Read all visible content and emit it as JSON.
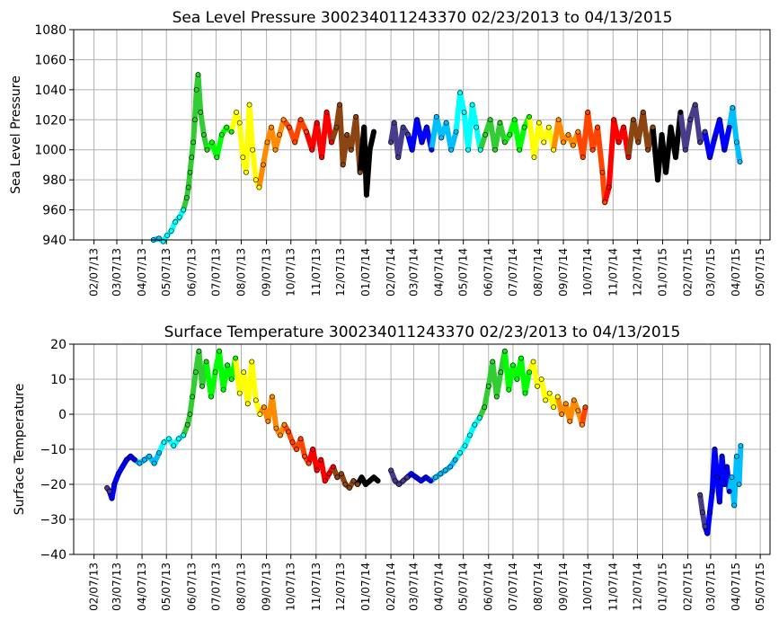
{
  "chart_data": [
    {
      "type": "scatter",
      "title": "Sea Level Pressure 300234011243370  02/23/2013 to 04/13/2015",
      "xlabel": "",
      "ylabel": "Sea Level Pressure",
      "ylim": [
        940,
        1080
      ],
      "yticks": [
        "940",
        "960",
        "980",
        "1000",
        "1020",
        "1040",
        "1060",
        "1080"
      ],
      "xlim": [
        "2013-01-13",
        "2015-05-19"
      ],
      "xticks": [
        "02/07/13",
        "03/07/13",
        "04/07/13",
        "05/07/13",
        "06/07/13",
        "07/07/13",
        "08/07/13",
        "09/07/13",
        "10/07/13",
        "11/07/13",
        "12/07/13",
        "01/07/14",
        "02/07/14",
        "03/07/14",
        "04/07/14",
        "05/07/14",
        "06/07/14",
        "07/07/14",
        "08/07/14",
        "09/07/14",
        "10/07/14",
        "11/07/14",
        "12/07/14",
        "01/07/15",
        "02/07/15",
        "03/07/15",
        "04/07/15",
        "05/07/15"
      ],
      "grid": true,
      "points": [
        [
          "2013-04-21",
          940
        ],
        [
          "2013-04-28",
          941
        ],
        [
          "2013-05-03",
          939
        ],
        [
          "2013-05-08",
          943
        ],
        [
          "2013-05-13",
          946
        ],
        [
          "2013-05-18",
          952
        ],
        [
          "2013-05-23",
          955
        ],
        [
          "2013-05-28",
          960
        ],
        [
          "2013-06-01",
          968
        ],
        [
          "2013-06-03",
          975
        ],
        [
          "2013-06-05",
          985
        ],
        [
          "2013-06-07",
          995
        ],
        [
          "2013-06-09",
          1005
        ],
        [
          "2013-06-11",
          1020
        ],
        [
          "2013-06-13",
          1040
        ],
        [
          "2013-06-15",
          1050
        ],
        [
          "2013-06-18",
          1025
        ],
        [
          "2013-06-22",
          1010
        ],
        [
          "2013-06-26",
          1000
        ],
        [
          "2013-07-02",
          1005
        ],
        [
          "2013-07-08",
          995
        ],
        [
          "2013-07-14",
          1010
        ],
        [
          "2013-07-20",
          1015
        ],
        [
          "2013-07-26",
          1012
        ],
        [
          "2013-08-01",
          1025
        ],
        [
          "2013-08-05",
          1018
        ],
        [
          "2013-08-09",
          995
        ],
        [
          "2013-08-13",
          985
        ],
        [
          "2013-08-17",
          1030
        ],
        [
          "2013-08-21",
          1000
        ],
        [
          "2013-08-25",
          980
        ],
        [
          "2013-08-29",
          975
        ],
        [
          "2013-09-03",
          990
        ],
        [
          "2013-09-08",
          1005
        ],
        [
          "2013-09-13",
          1015
        ],
        [
          "2013-09-18",
          1000
        ],
        [
          "2013-09-23",
          1010
        ],
        [
          "2013-09-28",
          1020
        ],
        [
          "2013-10-05",
          1015
        ],
        [
          "2013-10-12",
          1005
        ],
        [
          "2013-10-19",
          1020
        ],
        [
          "2013-10-26",
          1012
        ],
        [
          "2013-11-02",
          1000
        ],
        [
          "2013-11-08",
          1018
        ],
        [
          "2013-11-14",
          995
        ],
        [
          "2013-11-20",
          1025
        ],
        [
          "2013-11-26",
          1005
        ],
        [
          "2013-12-02",
          1015
        ],
        [
          "2013-12-06",
          1030
        ],
        [
          "2013-12-10",
          990
        ],
        [
          "2013-12-15",
          1010
        ],
        [
          "2013-12-20",
          1000
        ],
        [
          "2013-12-26",
          1022
        ],
        [
          "2013-12-31",
          985
        ],
        [
          "2014-01-05",
          1015
        ],
        [
          "2014-01-08",
          970
        ],
        [
          "2014-01-12",
          1000
        ],
        [
          "2014-01-17",
          1012
        ],
        [
          "2014-02-07",
          1005
        ],
        [
          "2014-02-11",
          1018
        ],
        [
          "2014-02-16",
          995
        ],
        [
          "2014-02-22",
          1015
        ],
        [
          "2014-02-28",
          1010
        ],
        [
          "2014-03-05",
          1000
        ],
        [
          "2014-03-11",
          1020
        ],
        [
          "2014-03-17",
          1005
        ],
        [
          "2014-03-23",
          1015
        ],
        [
          "2014-03-29",
          1000
        ],
        [
          "2014-04-04",
          1022
        ],
        [
          "2014-04-10",
          1008
        ],
        [
          "2014-04-16",
          1018
        ],
        [
          "2014-04-22",
          1000
        ],
        [
          "2014-04-28",
          1012
        ],
        [
          "2014-05-03",
          1038
        ],
        [
          "2014-05-08",
          1025
        ],
        [
          "2014-05-13",
          1000
        ],
        [
          "2014-05-18",
          1030
        ],
        [
          "2014-05-23",
          1015
        ],
        [
          "2014-05-28",
          1000
        ],
        [
          "2014-06-03",
          1010
        ],
        [
          "2014-06-09",
          1020
        ],
        [
          "2014-06-15",
          1000
        ],
        [
          "2014-06-21",
          1018
        ],
        [
          "2014-06-27",
          1005
        ],
        [
          "2014-07-03",
          1010
        ],
        [
          "2014-07-09",
          1020
        ],
        [
          "2014-07-15",
          1000
        ],
        [
          "2014-07-21",
          1015
        ],
        [
          "2014-07-27",
          1022
        ],
        [
          "2014-08-02",
          995
        ],
        [
          "2014-08-08",
          1018
        ],
        [
          "2014-08-14",
          1005
        ],
        [
          "2014-08-20",
          1015
        ],
        [
          "2014-08-26",
          1000
        ],
        [
          "2014-09-01",
          1020
        ],
        [
          "2014-09-07",
          1005
        ],
        [
          "2014-09-13",
          1010
        ],
        [
          "2014-09-19",
          1003
        ],
        [
          "2014-09-25",
          1012
        ],
        [
          "2014-10-01",
          995
        ],
        [
          "2014-10-07",
          1025
        ],
        [
          "2014-10-13",
          1000
        ],
        [
          "2014-10-19",
          1015
        ],
        [
          "2014-10-25",
          985
        ],
        [
          "2014-10-28",
          965
        ],
        [
          "2014-11-02",
          975
        ],
        [
          "2014-11-08",
          1020
        ],
        [
          "2014-11-14",
          1005
        ],
        [
          "2014-11-20",
          1015
        ],
        [
          "2014-11-26",
          995
        ],
        [
          "2014-12-02",
          1020
        ],
        [
          "2014-12-08",
          1005
        ],
        [
          "2014-12-14",
          1025
        ],
        [
          "2014-12-20",
          1000
        ],
        [
          "2014-12-26",
          1015
        ],
        [
          "2015-01-01",
          980
        ],
        [
          "2015-01-06",
          1010
        ],
        [
          "2015-01-11",
          985
        ],
        [
          "2015-01-17",
          1015
        ],
        [
          "2015-01-23",
          995
        ],
        [
          "2015-01-29",
          1025
        ],
        [
          "2015-02-04",
          1000
        ],
        [
          "2015-02-10",
          1020
        ],
        [
          "2015-02-16",
          1030
        ],
        [
          "2015-02-22",
          1005
        ],
        [
          "2015-02-28",
          1012
        ],
        [
          "2015-03-06",
          995
        ],
        [
          "2015-03-12",
          1008
        ],
        [
          "2015-03-18",
          1020
        ],
        [
          "2015-03-24",
          1000
        ],
        [
          "2015-03-30",
          1015
        ],
        [
          "2015-04-03",
          1028
        ],
        [
          "2015-04-08",
          1005
        ],
        [
          "2015-04-12",
          992
        ]
      ]
    },
    {
      "type": "scatter",
      "title": "Surface Temperature 300234011243370  02/23/2013 to 04/13/2015",
      "xlabel": "",
      "ylabel": "Surface Temperature",
      "ylim": [
        -40,
        20
      ],
      "yticks": [
        "−40",
        "−30",
        "−20",
        "−10",
        "0",
        "10",
        "20"
      ],
      "xlim": [
        "2013-01-13",
        "2015-05-19"
      ],
      "xticks": [
        "02/07/13",
        "03/07/13",
        "04/07/13",
        "05/07/13",
        "06/07/13",
        "07/07/13",
        "08/07/13",
        "09/07/13",
        "10/07/13",
        "11/07/13",
        "12/07/13",
        "01/07/14",
        "02/07/14",
        "03/07/14",
        "04/07/14",
        "05/07/14",
        "06/07/14",
        "07/07/14",
        "08/07/14",
        "09/07/14",
        "10/07/14",
        "11/07/14",
        "12/07/14",
        "01/07/15",
        "02/07/15",
        "03/07/15",
        "04/07/15",
        "05/07/15"
      ],
      "grid": true,
      "points": [
        [
          "2013-02-23",
          -21
        ],
        [
          "2013-02-26",
          -22
        ],
        [
          "2013-03-01",
          -24
        ],
        [
          "2013-03-04",
          -20
        ],
        [
          "2013-03-09",
          -17
        ],
        [
          "2013-03-14",
          -15
        ],
        [
          "2013-03-19",
          -13
        ],
        [
          "2013-03-24",
          -12
        ],
        [
          "2013-03-29",
          -13
        ],
        [
          "2013-04-04",
          -14
        ],
        [
          "2013-04-10",
          -13
        ],
        [
          "2013-04-16",
          -12
        ],
        [
          "2013-04-22",
          -14
        ],
        [
          "2013-04-28",
          -11
        ],
        [
          "2013-05-04",
          -8
        ],
        [
          "2013-05-10",
          -7
        ],
        [
          "2013-05-16",
          -9
        ],
        [
          "2013-05-22",
          -7
        ],
        [
          "2013-05-28",
          -6
        ],
        [
          "2013-06-02",
          -3
        ],
        [
          "2013-06-05",
          0
        ],
        [
          "2013-06-08",
          5
        ],
        [
          "2013-06-12",
          12
        ],
        [
          "2013-06-16",
          18
        ],
        [
          "2013-06-20",
          8
        ],
        [
          "2013-06-25",
          15
        ],
        [
          "2013-07-01",
          5
        ],
        [
          "2013-07-06",
          12
        ],
        [
          "2013-07-11",
          18
        ],
        [
          "2013-07-16",
          7
        ],
        [
          "2013-07-21",
          14
        ],
        [
          "2013-07-26",
          10
        ],
        [
          "2013-07-31",
          16
        ],
        [
          "2013-08-05",
          6
        ],
        [
          "2013-08-10",
          12
        ],
        [
          "2013-08-15",
          3
        ],
        [
          "2013-08-20",
          15
        ],
        [
          "2013-08-25",
          4
        ],
        [
          "2013-08-30",
          0
        ],
        [
          "2013-09-04",
          2
        ],
        [
          "2013-09-09",
          -2
        ],
        [
          "2013-09-14",
          5
        ],
        [
          "2013-09-19",
          -4
        ],
        [
          "2013-09-24",
          -6
        ],
        [
          "2013-09-29",
          -3
        ],
        [
          "2013-10-04",
          -5
        ],
        [
          "2013-10-09",
          -8
        ],
        [
          "2013-10-14",
          -10
        ],
        [
          "2013-10-19",
          -7
        ],
        [
          "2013-10-24",
          -12
        ],
        [
          "2013-10-29",
          -14
        ],
        [
          "2013-11-03",
          -10
        ],
        [
          "2013-11-08",
          -16
        ],
        [
          "2013-11-13",
          -13
        ],
        [
          "2013-11-18",
          -19
        ],
        [
          "2013-11-23",
          -17
        ],
        [
          "2013-11-28",
          -15
        ],
        [
          "2013-12-03",
          -18
        ],
        [
          "2013-12-08",
          -17
        ],
        [
          "2013-12-13",
          -20
        ],
        [
          "2013-12-18",
          -21
        ],
        [
          "2013-12-23",
          -19
        ],
        [
          "2013-12-28",
          -20
        ],
        [
          "2014-01-02",
          -18
        ],
        [
          "2014-01-07",
          -20
        ],
        [
          "2014-01-12",
          -19
        ],
        [
          "2014-01-17",
          -18
        ],
        [
          "2014-01-22",
          -19
        ],
        [
          "2014-02-07",
          -16
        ],
        [
          "2014-02-12",
          -19
        ],
        [
          "2014-02-17",
          -20
        ],
        [
          "2014-02-22",
          -19
        ],
        [
          "2014-02-27",
          -18
        ],
        [
          "2014-03-04",
          -17
        ],
        [
          "2014-03-10",
          -18
        ],
        [
          "2014-03-16",
          -19
        ],
        [
          "2014-03-22",
          -18
        ],
        [
          "2014-03-28",
          -19
        ],
        [
          "2014-04-03",
          -18
        ],
        [
          "2014-04-09",
          -17
        ],
        [
          "2014-04-15",
          -16
        ],
        [
          "2014-04-21",
          -15
        ],
        [
          "2014-04-27",
          -13
        ],
        [
          "2014-05-03",
          -11
        ],
        [
          "2014-05-09",
          -9
        ],
        [
          "2014-05-15",
          -6
        ],
        [
          "2014-05-21",
          -3
        ],
        [
          "2014-05-27",
          -1
        ],
        [
          "2014-06-02",
          2
        ],
        [
          "2014-06-07",
          8
        ],
        [
          "2014-06-12",
          15
        ],
        [
          "2014-06-17",
          5
        ],
        [
          "2014-06-22",
          12
        ],
        [
          "2014-06-27",
          18
        ],
        [
          "2014-07-02",
          7
        ],
        [
          "2014-07-07",
          14
        ],
        [
          "2014-07-12",
          10
        ],
        [
          "2014-07-17",
          16
        ],
        [
          "2014-07-22",
          6
        ],
        [
          "2014-07-27",
          12
        ],
        [
          "2014-08-01",
          15
        ],
        [
          "2014-08-06",
          8
        ],
        [
          "2014-08-11",
          10
        ],
        [
          "2014-08-16",
          4
        ],
        [
          "2014-08-21",
          6
        ],
        [
          "2014-08-26",
          2
        ],
        [
          "2014-08-31",
          5
        ],
        [
          "2014-09-05",
          0
        ],
        [
          "2014-09-10",
          3
        ],
        [
          "2014-09-15",
          -2
        ],
        [
          "2014-09-20",
          4
        ],
        [
          "2014-09-25",
          1
        ],
        [
          "2014-09-30",
          -3
        ],
        [
          "2014-10-04",
          2
        ],
        [
          "2015-02-22",
          -23
        ],
        [
          "2015-02-25",
          -28
        ],
        [
          "2015-02-28",
          -32
        ],
        [
          "2015-03-03",
          -34
        ],
        [
          "2015-03-06",
          -28
        ],
        [
          "2015-03-09",
          -22
        ],
        [
          "2015-03-12",
          -10
        ],
        [
          "2015-03-15",
          -18
        ],
        [
          "2015-03-18",
          -25
        ],
        [
          "2015-03-21",
          -12
        ],
        [
          "2015-03-24",
          -20
        ],
        [
          "2015-03-27",
          -15
        ],
        [
          "2015-03-30",
          -22
        ],
        [
          "2015-04-02",
          -18
        ],
        [
          "2015-04-05",
          -26
        ],
        [
          "2015-04-08",
          -12
        ],
        [
          "2015-04-11",
          -20
        ],
        [
          "2015-04-13",
          -9
        ]
      ]
    }
  ]
}
